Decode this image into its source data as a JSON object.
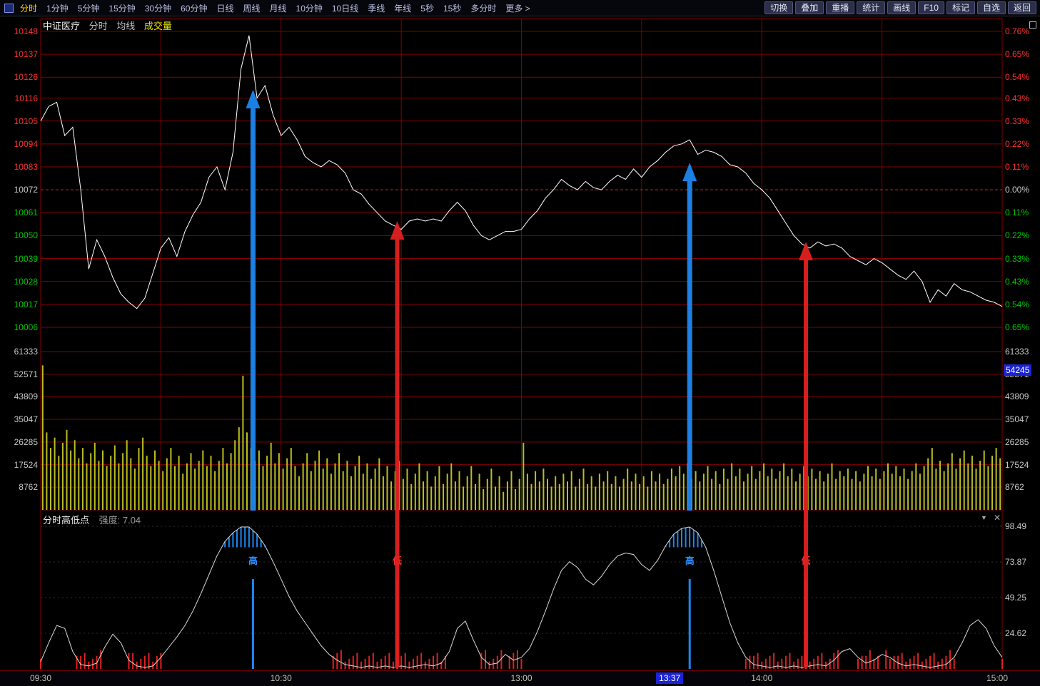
{
  "toolbar": {
    "menu_items": [
      "分时",
      "1分钟",
      "5分钟",
      "15分钟",
      "30分钟",
      "60分钟",
      "日线",
      "周线",
      "月线",
      "10分钟",
      "10日线",
      "季线",
      "年线",
      "5秒",
      "15秒",
      "多分时",
      "更多 >"
    ],
    "selected_item": "分时",
    "action_buttons": [
      "切换",
      "叠加",
      "重播",
      "统计",
      "画线",
      "F10",
      "标记",
      "自选",
      "返回"
    ]
  },
  "title": {
    "symbol": "中证医疗",
    "items": [
      "分时",
      "均线",
      "成交量"
    ]
  },
  "icons": {
    "collapse": "▼",
    "close": "✕"
  },
  "colors": {
    "background": "#000000",
    "grid": "#840000",
    "price_line": "#ffffff",
    "volume_bar": "#bdbd1e",
    "up": "#ff3232",
    "down": "#00c800",
    "neutral": "#c8c8c8",
    "accent_blue": "#1e86ef",
    "accent_red": "#e02020",
    "badge_bg": "#1b23d2",
    "indicator_line": "#d8d8d8"
  },
  "percent_axis": {
    "labels": [
      "0.76%",
      "0.65%",
      "0.54%",
      "0.43%",
      "0.33%",
      "0.22%",
      "0.11%",
      "0.00%",
      "0.11%",
      "0.22%",
      "0.33%",
      "0.43%",
      "0.54%",
      "0.65%"
    ]
  },
  "indicator": {
    "name": "分时高低点",
    "strength": "强度: 7.04"
  },
  "time_axis": {
    "labels": [
      {
        "text": "09:30",
        "minute": 0
      },
      {
        "text": "10:30",
        "minute": 60
      },
      {
        "text": "13:00",
        "minute": 120
      },
      {
        "text": "14:00",
        "minute": 180
      },
      {
        "text": "15:00",
        "minute": 240
      }
    ],
    "cursor": {
      "text": "13:37",
      "minute": 157
    }
  },
  "annotations": {
    "arrows": [
      {
        "minute": 53,
        "kind": "high",
        "tip_price": 10120,
        "label": "高"
      },
      {
        "minute": 89,
        "kind": "low",
        "tip_price": 10057,
        "label": "低"
      },
      {
        "minute": 162,
        "kind": "high",
        "tip_price": 10085,
        "label": "高"
      },
      {
        "minute": 191,
        "kind": "low",
        "tip_price": 10047,
        "label": "低"
      }
    ]
  },
  "chart_data": [
    {
      "type": "line",
      "name": "price",
      "title": "中证医疗 分时",
      "x_step_minutes": 2,
      "total_minutes": 240,
      "ylim": [
        10006,
        10148
      ],
      "prev_close": 10072,
      "gridline_prices": [
        10148,
        10137,
        10126,
        10116,
        10105,
        10094,
        10083,
        10072,
        10061,
        10050,
        10039,
        10028,
        10017,
        10006
      ],
      "values": [
        10105,
        10112,
        10114,
        10098,
        10102,
        10072,
        10034,
        10048,
        10040,
        10030,
        10022,
        10018,
        10015,
        10020,
        10032,
        10044,
        10049,
        10040,
        10052,
        10060,
        10066,
        10078,
        10083,
        10072,
        10090,
        10130,
        10146,
        10116,
        10122,
        10108,
        10098,
        10102,
        10096,
        10088,
        10085,
        10083,
        10086,
        10084,
        10080,
        10072,
        10070,
        10065,
        10061,
        10057,
        10055,
        10053,
        10057,
        10058,
        10057,
        10058,
        10057,
        10062,
        10066,
        10062,
        10055,
        10050,
        10048,
        10050,
        10052,
        10052,
        10053,
        10058,
        10062,
        10068,
        10072,
        10077,
        10074,
        10072,
        10076,
        10073,
        10072,
        10076,
        10079,
        10077,
        10082,
        10078,
        10083,
        10086,
        10090,
        10093,
        10094,
        10096,
        10089,
        10091,
        10090,
        10088,
        10084,
        10083,
        10080,
        10075,
        10072,
        10068,
        10062,
        10056,
        10050,
        10046,
        10044,
        10047,
        10045,
        10046,
        10044,
        10040,
        10038,
        10036,
        10039,
        10037,
        10034,
        10031,
        10029,
        10033,
        10028,
        10018,
        10024,
        10021,
        10027,
        10024,
        10023,
        10021,
        10019,
        10018,
        10016
      ]
    },
    {
      "type": "bar",
      "name": "volume",
      "x_step_minutes": 1,
      "ylim": [
        0,
        61333
      ],
      "gridline_values": [
        61333,
        52571,
        43809,
        35047,
        26285,
        17524,
        8762
      ],
      "current": 54245,
      "values": [
        56000,
        30000,
        24000,
        28000,
        21000,
        26000,
        31000,
        23000,
        27000,
        20000,
        24000,
        18000,
        22000,
        26000,
        19000,
        23000,
        17000,
        21000,
        25000,
        18000,
        22000,
        27000,
        20000,
        16000,
        24000,
        28000,
        21000,
        17000,
        23000,
        19000,
        15000,
        20000,
        24000,
        17000,
        21000,
        14000,
        18000,
        22000,
        16000,
        19000,
        23000,
        17000,
        21000,
        15000,
        19000,
        24000,
        18000,
        22000,
        27000,
        32000,
        52000,
        30000,
        24000,
        19000,
        23000,
        17000,
        21000,
        26000,
        18000,
        22000,
        16000,
        20000,
        24000,
        17000,
        13000,
        18000,
        22000,
        15000,
        19000,
        23000,
        16000,
        20000,
        14000,
        18000,
        22000,
        15000,
        19000,
        13000,
        17000,
        21000,
        14000,
        18000,
        12000,
        16000,
        20000,
        13000,
        17000,
        11000,
        15000,
        19000,
        12000,
        16000,
        10000,
        14000,
        18000,
        11000,
        15000,
        9000,
        13000,
        17000,
        10000,
        14000,
        18000,
        11000,
        15000,
        9000,
        13000,
        17000,
        10000,
        14000,
        8000,
        12000,
        16000,
        9000,
        13000,
        7000,
        11000,
        15000,
        8000,
        12000,
        26000,
        14000,
        10000,
        15000,
        11000,
        16000,
        12000,
        9000,
        13000,
        10000,
        14000,
        11000,
        15000,
        9000,
        12000,
        16000,
        10000,
        13000,
        9000,
        14000,
        11000,
        15000,
        10000,
        13000,
        9000,
        12000,
        16000,
        11000,
        14000,
        10000,
        13000,
        9000,
        15000,
        11000,
        14000,
        10000,
        12000,
        16000,
        13000,
        17000,
        14000,
        18000,
        12000,
        15000,
        11000,
        14000,
        17000,
        12000,
        15000,
        10000,
        16000,
        12000,
        18000,
        13000,
        16000,
        11000,
        14000,
        17000,
        12000,
        15000,
        18000,
        13000,
        16000,
        12000,
        15000,
        18000,
        13000,
        16000,
        11000,
        14000,
        17000,
        13000,
        16000,
        12000,
        15000,
        11000,
        14000,
        18000,
        12000,
        15000,
        13000,
        16000,
        12000,
        15000,
        11000,
        14000,
        17000,
        13000,
        16000,
        12000,
        15000,
        18000,
        14000,
        17000,
        13000,
        16000,
        12000,
        15000,
        18000,
        14000,
        17000,
        20000,
        24000,
        16000,
        19000,
        15000,
        18000,
        22000,
        16000,
        20000,
        23000,
        18000,
        21000,
        16000,
        19000,
        23000,
        17000,
        21000,
        24000,
        20000
      ]
    },
    {
      "type": "line",
      "name": "intraday-high-low",
      "title": "分时高低点",
      "x_step_minutes": 2,
      "ylim": [
        0,
        100
      ],
      "gridline_values": [
        98.49,
        73.87,
        49.25,
        24.62
      ],
      "high_band": 84,
      "low_band": 10,
      "values": [
        5,
        18,
        30,
        28,
        12,
        3,
        2,
        4,
        15,
        24,
        18,
        6,
        2,
        1,
        2,
        8,
        15,
        22,
        30,
        40,
        52,
        65,
        78,
        88,
        94,
        98,
        98,
        93,
        85,
        74,
        62,
        50,
        40,
        32,
        24,
        16,
        10,
        6,
        3,
        2,
        1,
        2,
        1,
        2,
        1,
        2,
        1,
        2,
        3,
        2,
        4,
        12,
        28,
        33,
        20,
        8,
        3,
        4,
        10,
        6,
        8,
        14,
        26,
        40,
        55,
        68,
        74,
        70,
        62,
        58,
        64,
        72,
        78,
        80,
        79,
        72,
        68,
        75,
        85,
        93,
        97,
        98,
        94,
        84,
        68,
        50,
        32,
        18,
        8,
        3,
        2,
        1,
        2,
        1,
        2,
        1,
        2,
        3,
        2,
        6,
        12,
        14,
        8,
        4,
        6,
        10,
        8,
        4,
        2,
        3,
        2,
        1,
        2,
        3,
        8,
        18,
        30,
        34,
        28,
        16,
        8
      ]
    }
  ]
}
